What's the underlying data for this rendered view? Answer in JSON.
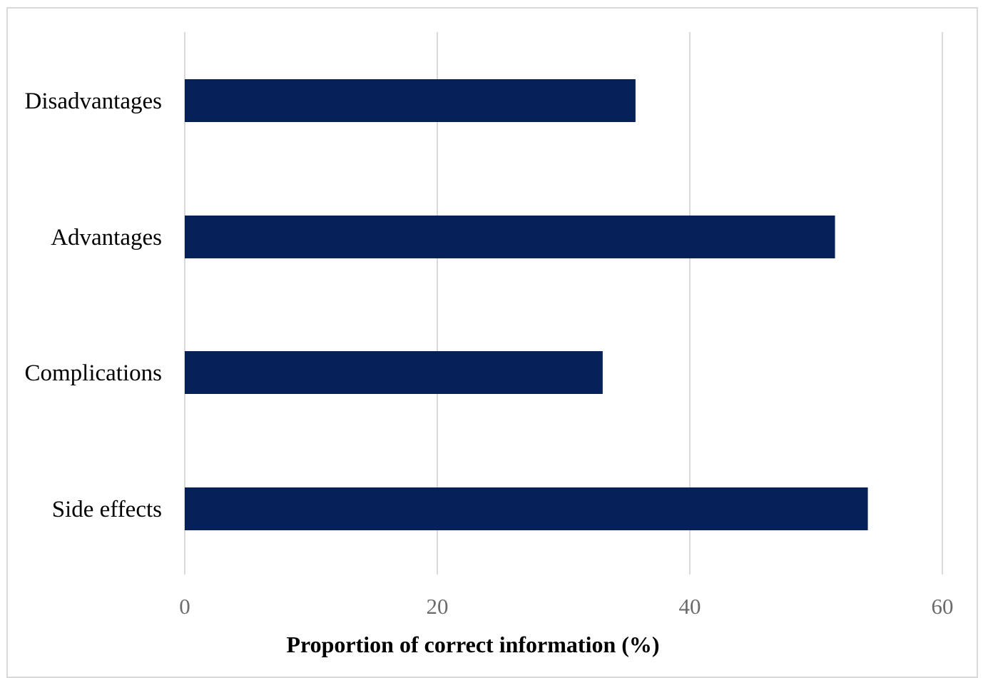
{
  "chart_data": {
    "type": "bar",
    "orientation": "horizontal",
    "categories": [
      "Disadvantages",
      "Advantages",
      "Complications",
      "Side effects"
    ],
    "values": [
      35.7,
      51.5,
      33.1,
      54.1
    ],
    "xlabel": "Proportion of correct information (%)",
    "ylabel": "",
    "xlim": [
      0,
      60
    ],
    "xticks": [
      0,
      20,
      40,
      60
    ],
    "xtick_labels": [
      "0",
      "20",
      "40",
      "60"
    ],
    "grid": true,
    "legend": "none",
    "bar_color": "#06215a",
    "grid_color": "#d9d9d9"
  }
}
